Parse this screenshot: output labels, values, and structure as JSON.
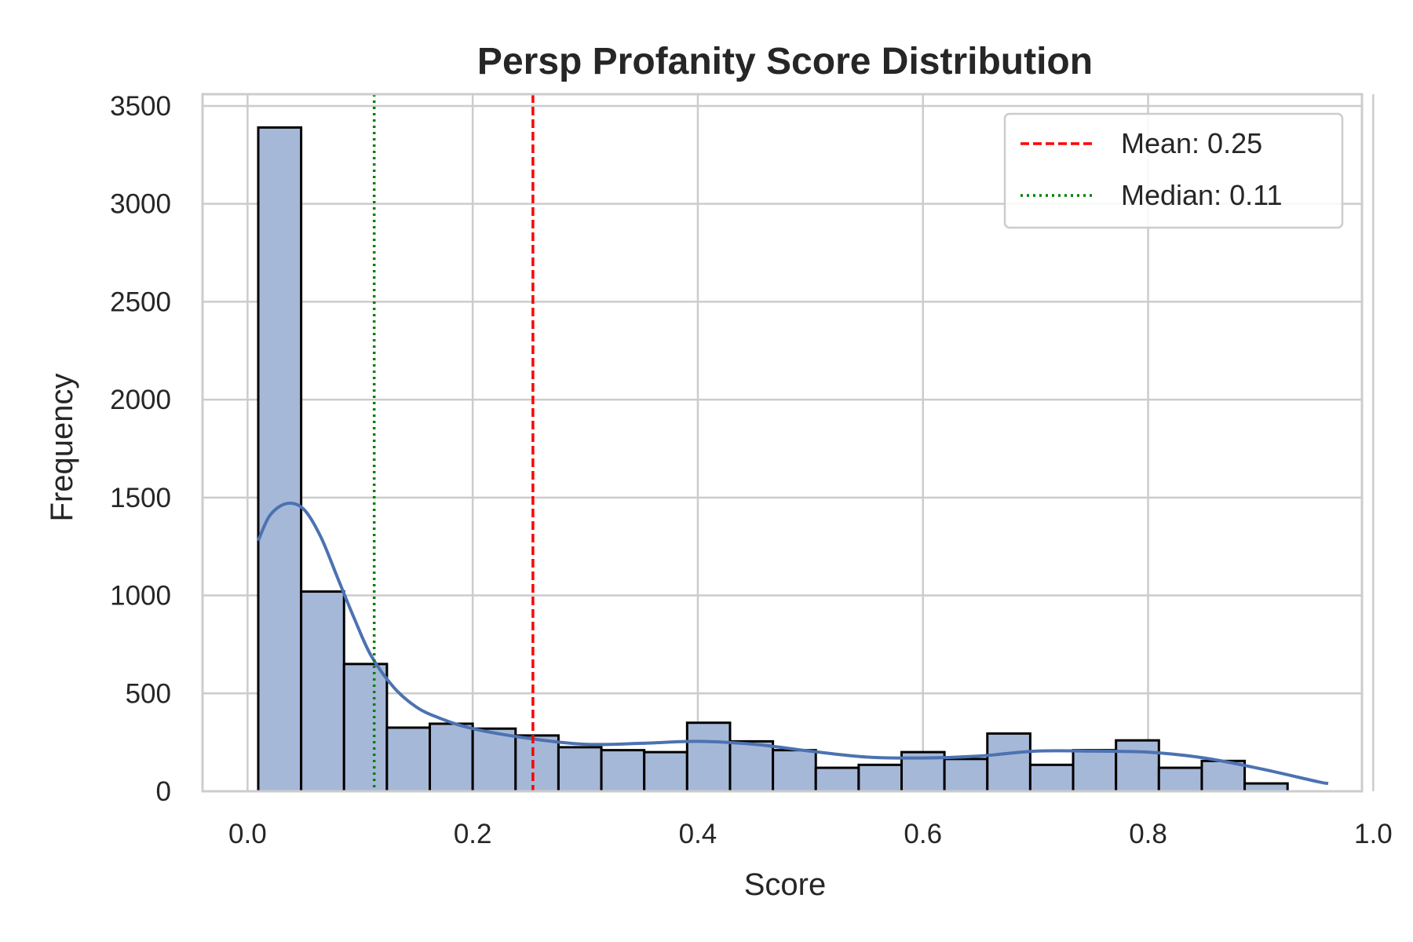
{
  "chart_data": {
    "type": "bar",
    "title": "Persp Profanity Score Distribution",
    "xlabel": "Score",
    "ylabel": "Frequency",
    "xlim": [
      -0.04,
      0.99
    ],
    "ylim": [
      0,
      3560
    ],
    "xticks": [
      0.0,
      0.2,
      0.4,
      0.6,
      0.8,
      1.0
    ],
    "xtick_labels": [
      "0.0",
      "0.2",
      "0.4",
      "0.6",
      "0.8",
      "1.0"
    ],
    "yticks": [
      0,
      500,
      1000,
      1500,
      2000,
      2500,
      3000,
      3500
    ],
    "ytick_labels": [
      "0",
      "500",
      "1000",
      "1500",
      "2000",
      "2500",
      "3000",
      "3500"
    ],
    "grid": true,
    "legend_position": "top-right",
    "bins": {
      "start": 0.0095,
      "width": 0.0381,
      "counts": [
        3390,
        1020,
        650,
        325,
        345,
        320,
        285,
        225,
        210,
        200,
        350,
        255,
        210,
        120,
        135,
        200,
        165,
        295,
        135,
        210,
        260,
        120,
        155,
        40
      ]
    },
    "bar_color": "#a6b8d8",
    "kde": {
      "color": "#4c72b0",
      "x": [
        0.0095,
        0.02,
        0.035,
        0.05,
        0.065,
        0.08,
        0.095,
        0.11,
        0.13,
        0.15,
        0.17,
        0.2,
        0.25,
        0.3,
        0.35,
        0.4,
        0.45,
        0.5,
        0.55,
        0.6,
        0.65,
        0.7,
        0.75,
        0.8,
        0.85,
        0.9,
        0.95,
        0.96
      ],
      "y": [
        1280,
        1410,
        1470,
        1440,
        1300,
        1090,
        880,
        690,
        530,
        430,
        375,
        320,
        270,
        240,
        245,
        255,
        240,
        205,
        175,
        170,
        180,
        205,
        205,
        200,
        170,
        115,
        50,
        40
      ]
    },
    "reference_lines": [
      {
        "name": "Mean: 0.25",
        "value": 0.2535,
        "color": "#ff0000",
        "style": "dashed"
      },
      {
        "name": "Median: 0.11",
        "value": 0.1125,
        "color": "#008000",
        "style": "dotted"
      }
    ]
  }
}
